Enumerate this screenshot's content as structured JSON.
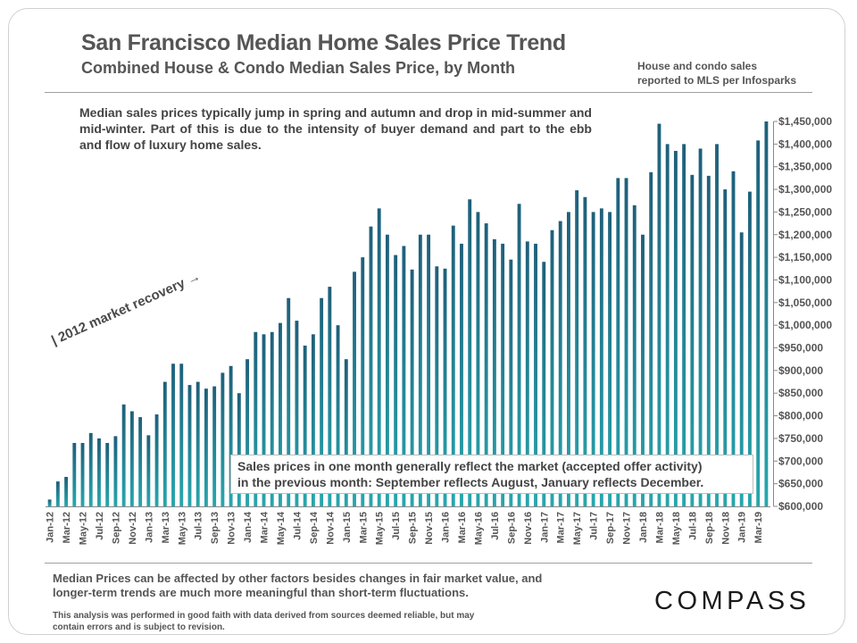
{
  "header": {
    "title": "San Francisco Median Home Sales Price Trend",
    "subtitle": "Combined House & Condo Median Sales Price, by Month",
    "source_note_line1": "House and condo sales",
    "source_note_line2": "reported to MLS per Infosparks"
  },
  "annotations": {
    "seasonal": "Median sales prices typically jump in spring and autumn and drop in mid-summer and mid-winter. Part of this is due to the intensity of buyer demand and part to the ebb and flow of luxury home sales.",
    "recovery": "| 2012 market recovery →",
    "lag_line1": "Sales prices in one month generally reflect the market (accepted offer activity)",
    "lag_line2": "in the previous month:   September reflects August, January reflects December."
  },
  "footer": {
    "note_line1": "Median Prices can be affected by other factors besides changes in fair market value, and",
    "note_line2": "longer-term trends are much more meaningful than short-term fluctuations.",
    "disclaimer_line1": "This analysis was performed in good faith with data derived from sources deemed reliable, but may",
    "disclaimer_line2": "contain errors and is subject to revision.",
    "logo": "COMPASS"
  },
  "colors": {
    "bar_top": "#1f5f7a",
    "bar_bottom": "#27a7ae",
    "text": "#555555"
  },
  "chart_data": {
    "type": "bar",
    "categories": [
      "Jan-12",
      "Feb-12",
      "Mar-12",
      "Apr-12",
      "May-12",
      "Jun-12",
      "Jul-12",
      "Aug-12",
      "Sep-12",
      "Oct-12",
      "Nov-12",
      "Dec-12",
      "Jan-13",
      "Feb-13",
      "Mar-13",
      "Apr-13",
      "May-13",
      "Jun-13",
      "Jul-13",
      "Aug-13",
      "Sep-13",
      "Oct-13",
      "Nov-13",
      "Dec-13",
      "Jan-14",
      "Feb-14",
      "Mar-14",
      "Apr-14",
      "May-14",
      "Jun-14",
      "Jul-14",
      "Aug-14",
      "Sep-14",
      "Oct-14",
      "Nov-14",
      "Dec-14",
      "Jan-15",
      "Feb-15",
      "Mar-15",
      "Apr-15",
      "May-15",
      "Jun-15",
      "Jul-15",
      "Aug-15",
      "Sep-15",
      "Oct-15",
      "Nov-15",
      "Dec-15",
      "Jan-16",
      "Feb-16",
      "Mar-16",
      "Apr-16",
      "May-16",
      "Jun-16",
      "Jul-16",
      "Aug-16",
      "Sep-16",
      "Oct-16",
      "Nov-16",
      "Dec-16",
      "Jan-17",
      "Feb-17",
      "Mar-17",
      "Apr-17",
      "May-17",
      "Jun-17",
      "Jul-17",
      "Aug-17",
      "Sep-17",
      "Oct-17",
      "Nov-17",
      "Dec-17",
      "Jan-18",
      "Feb-18",
      "Mar-18",
      "Apr-18",
      "May-18",
      "Jun-18",
      "Jul-18",
      "Aug-18",
      "Sep-18",
      "Oct-18",
      "Nov-18",
      "Dec-18",
      "Jan-19",
      "Feb-19",
      "Mar-19",
      "Apr-19"
    ],
    "values": [
      615000,
      655000,
      665000,
      740000,
      740000,
      762000,
      750000,
      740000,
      755000,
      825000,
      810000,
      797000,
      757000,
      803000,
      875000,
      915000,
      915000,
      868000,
      875000,
      860000,
      865000,
      895000,
      910000,
      850000,
      925000,
      985000,
      980000,
      985000,
      1005000,
      1060000,
      1010000,
      955000,
      980000,
      1060000,
      1085000,
      1000000,
      925000,
      1118000,
      1150000,
      1218000,
      1258000,
      1200000,
      1155000,
      1175000,
      1123000,
      1200000,
      1200000,
      1130000,
      1125000,
      1220000,
      1180000,
      1278000,
      1250000,
      1225000,
      1190000,
      1180000,
      1145000,
      1268000,
      1185000,
      1180000,
      1140000,
      1210000,
      1230000,
      1250000,
      1298000,
      1283000,
      1250000,
      1258000,
      1250000,
      1325000,
      1325000,
      1265000,
      1200000,
      1338000,
      1445000,
      1400000,
      1385000,
      1400000,
      1332000,
      1390000,
      1330000,
      1400000,
      1300000,
      1340000,
      1205000,
      1295000,
      1408000,
      1450000
    ],
    "tick_labels": [
      "Jan-12",
      "Mar-12",
      "May-12",
      "Jul-12",
      "Sep-12",
      "Nov-12",
      "Jan-13",
      "Mar-13",
      "May-13",
      "Jul-13",
      "Sep-13",
      "Nov-13",
      "Jan-14",
      "Mar-14",
      "May-14",
      "Jul-14",
      "Sep-14",
      "Nov-14",
      "Jan-15",
      "Mar-15",
      "May-15",
      "Jul-15",
      "Sep-15",
      "Nov-15",
      "Jan-16",
      "Mar-16",
      "May-16",
      "Jul-16",
      "Sep-16",
      "Nov-16",
      "Jan-17",
      "Mar-17",
      "May-17",
      "Jul-17",
      "Sep-17",
      "Nov-17",
      "Jan-18",
      "Mar-18",
      "May-18",
      "Jul-18",
      "Sep-18",
      "Nov-18",
      "Jan-19",
      "Mar-19"
    ],
    "y_ticks": [
      "$600,000",
      "$650,000",
      "$700,000",
      "$750,000",
      "$800,000",
      "$850,000",
      "$900,000",
      "$950,000",
      "$1,000,000",
      "$1,050,000",
      "$1,100,000",
      "$1,150,000",
      "$1,200,000",
      "$1,250,000",
      "$1,300,000",
      "$1,350,000",
      "$1,400,000",
      "$1,450,000"
    ],
    "ylim": [
      600000,
      1450000
    ],
    "y_axis_position": "right",
    "grid": false,
    "title": "San Francisco Median Home Sales Price Trend",
    "xlabel": "",
    "ylabel": ""
  }
}
